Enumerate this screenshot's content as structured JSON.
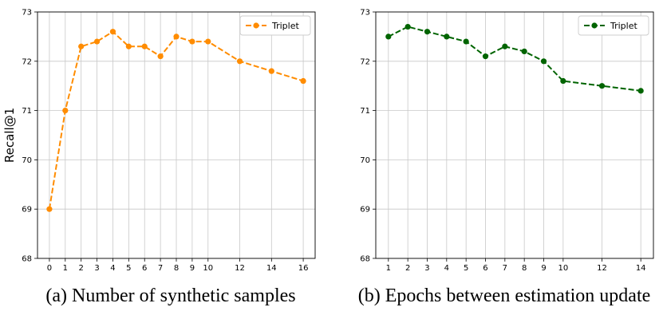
{
  "chart_data": [
    {
      "type": "line",
      "title": "",
      "caption": "(a) Number of synthetic samples",
      "xlabel": "",
      "ylabel": "Recall@1",
      "ylim": [
        68,
        73
      ],
      "yticks": [
        68,
        69,
        70,
        71,
        72,
        73
      ],
      "xlim": [
        -0.75,
        16.75
      ],
      "xticks": [
        0,
        1,
        2,
        3,
        4,
        5,
        6,
        7,
        8,
        9,
        10,
        12,
        14,
        16
      ],
      "grid": true,
      "legend": "top-right",
      "series": [
        {
          "name": "Triplet",
          "color": "#ff8c00",
          "linestyle": "dashed",
          "marker": "circle",
          "x": [
            0,
            1,
            2,
            3,
            4,
            5,
            6,
            7,
            8,
            9,
            10,
            12,
            14,
            16
          ],
          "y": [
            69.0,
            71.0,
            72.3,
            72.4,
            72.6,
            72.3,
            72.3,
            72.1,
            72.5,
            72.4,
            72.4,
            72.0,
            71.8,
            71.6
          ]
        }
      ]
    },
    {
      "type": "line",
      "title": "",
      "caption": "(b) Epochs between estimation update",
      "xlabel": "",
      "ylabel": "",
      "ylim": [
        68,
        73
      ],
      "yticks": [
        68,
        69,
        70,
        71,
        72,
        73
      ],
      "xlim": [
        0.35,
        14.65
      ],
      "xticks": [
        1,
        2,
        3,
        4,
        5,
        6,
        7,
        8,
        9,
        10,
        12,
        14
      ],
      "grid": true,
      "legend": "top-right",
      "series": [
        {
          "name": "Triplet",
          "color": "#006400",
          "linestyle": "dashed",
          "marker": "circle",
          "x": [
            1,
            2,
            3,
            4,
            5,
            6,
            7,
            8,
            9,
            10,
            12,
            14
          ],
          "y": [
            72.5,
            72.7,
            72.6,
            72.5,
            72.4,
            72.1,
            72.3,
            72.2,
            72.0,
            71.6,
            71.5,
            71.4
          ]
        }
      ]
    }
  ]
}
